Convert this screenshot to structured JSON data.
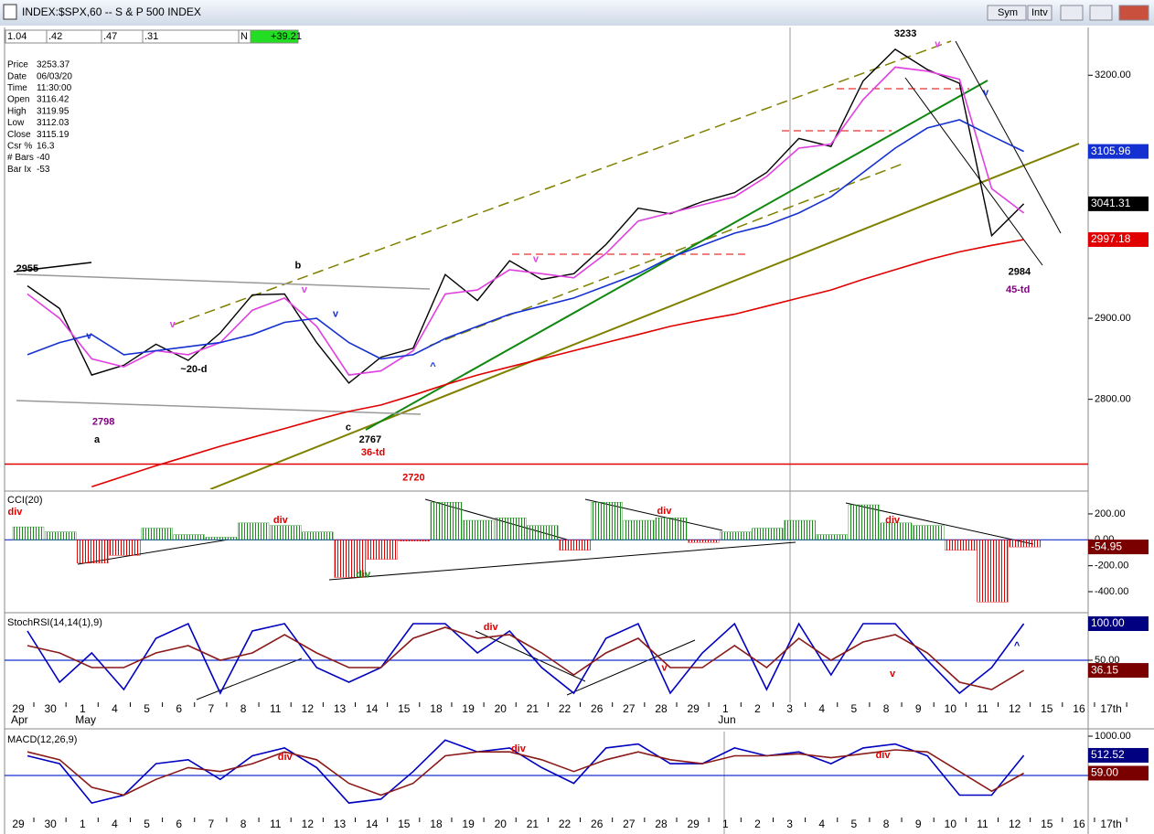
{
  "window": {
    "title": "INDEX:$SPX,60 -- S & P 500 INDEX",
    "buttons": [
      "Sym",
      "Intv"
    ]
  },
  "toolbar": [
    "1.04",
    ".42",
    ".47",
    ".31",
    "N",
    "+39.21"
  ],
  "info": [
    [
      "Price",
      "3253.37"
    ],
    [
      "Date",
      "06/03/20"
    ],
    [
      "Time",
      "11:30:00"
    ],
    [
      "Open",
      "3116.42"
    ],
    [
      "High",
      "3119.95"
    ],
    [
      "Low",
      "3112.03"
    ],
    [
      "Close",
      "3115.19"
    ],
    [
      "Csr %",
      "16.3"
    ],
    [
      "# Bars",
      "-40"
    ],
    [
      "Bar Ix",
      "-53"
    ]
  ],
  "chart_data": [
    {
      "type": "line",
      "categories": [
        "29",
        "30",
        "1",
        "4",
        "5",
        "6",
        "7",
        "8",
        "11",
        "12",
        "13",
        "14",
        "15",
        "18",
        "19",
        "20",
        "21",
        "22",
        "26",
        "27",
        "28",
        "29",
        "1",
        "2",
        "3",
        "4",
        "5",
        "8",
        "9",
        "10",
        "11",
        "12",
        "15",
        "16",
        "17th"
      ],
      "months": [
        {
          "label": "Apr",
          "at": 0
        },
        {
          "label": "May",
          "at": 2
        },
        {
          "label": "Jun",
          "at": 22
        }
      ],
      "ylim": [
        2689,
        3259
      ],
      "yticks": [
        {
          "value": 2800,
          "label": "2800.00"
        },
        {
          "value": 2900,
          "label": "2900.00"
        },
        {
          "value": 3200,
          "label": "3200.00"
        }
      ],
      "hlines": [
        {
          "value": 2720,
          "color": "#e00000"
        }
      ],
      "series": [
        {
          "color": "#000000",
          "values": [
            2940,
            2912,
            2830,
            2842,
            2868,
            2848,
            2882,
            2929,
            2930,
            2870,
            2820,
            2852,
            2863,
            2954,
            2922,
            2971,
            2948,
            2955,
            2991,
            3036,
            3029,
            3044,
            3055,
            3080,
            3122,
            3112,
            3193,
            3232,
            3207,
            3190,
            3002,
            3041.31,
            null,
            null,
            null
          ],
          "badge_color": "#000000"
        },
        {
          "color": "#e040e0",
          "values": [
            2930,
            2900,
            2850,
            2840,
            2860,
            2855,
            2870,
            2910,
            2925,
            2890,
            2830,
            2835,
            2860,
            2930,
            2935,
            2960,
            2955,
            2950,
            2980,
            3020,
            3030,
            3040,
            3050,
            3075,
            3110,
            3115,
            3170,
            3210,
            3205,
            3195,
            3060,
            3030,
            null,
            null,
            null
          ]
        },
        {
          "color": "#1530d0",
          "values": [
            2855,
            2870,
            2880,
            2855,
            2860,
            2865,
            2870,
            2880,
            2895,
            2900,
            2870,
            2850,
            2855,
            2875,
            2890,
            2905,
            2915,
            2925,
            2940,
            2955,
            2975,
            2990,
            3005,
            3015,
            3030,
            3050,
            3080,
            3110,
            3135,
            3145,
            3125,
            3105.96,
            null,
            null,
            null
          ],
          "badge_color": "#1530d0"
        },
        {
          "color": "#e00000",
          "values": [
            null,
            null,
            2692,
            2705,
            2718,
            2730,
            2742,
            2753,
            2764,
            2775,
            2785,
            2793,
            2805,
            2818,
            2830,
            2840,
            2850,
            2860,
            2870,
            2880,
            2890,
            2898,
            2905,
            2915,
            2925,
            2935,
            2948,
            2960,
            2972,
            2982,
            2990,
            2997.18,
            null,
            null,
            null
          ],
          "badge_color": "#e00000"
        }
      ],
      "annotations": [
        {
          "text": "2955",
          "x": 0.28,
          "y": 2961,
          "color": "#000000"
        },
        {
          "text": "b",
          "x": 8.7,
          "y": 2965,
          "color": "#000000"
        },
        {
          "text": "v",
          "x": 2.2,
          "y": 2878,
          "color": "#1530d0"
        },
        {
          "text": "v",
          "x": 4.8,
          "y": 2892,
          "color": "#e040e0"
        },
        {
          "text": "2798",
          "x": 2.65,
          "y": 2772,
          "color": "#800080"
        },
        {
          "text": "a",
          "x": 2.45,
          "y": 2750,
          "color": "#000000"
        },
        {
          "text": "~20-d",
          "x": 5.46,
          "y": 2837,
          "color": "#000000"
        },
        {
          "text": "c",
          "x": 10.27,
          "y": 2765,
          "color": "#000000"
        },
        {
          "text": "2767",
          "x": 10.95,
          "y": 2750,
          "color": "#000000"
        },
        {
          "text": "36-td",
          "x": 11.04,
          "y": 2734,
          "color": "#e00000"
        },
        {
          "text": "2720",
          "x": 12.3,
          "y": 2703,
          "color": "#e00000"
        },
        {
          "text": "^",
          "x": 12.9,
          "y": 2840,
          "color": "#1530d0"
        },
        {
          "text": "v",
          "x": 8.9,
          "y": 2935,
          "color": "#e040e0"
        },
        {
          "text": "v",
          "x": 9.87,
          "y": 2905,
          "color": "#1530d0"
        },
        {
          "text": "v",
          "x": 16.1,
          "y": 2973,
          "color": "#e040e0"
        },
        {
          "text": "3233",
          "x": 27.6,
          "y": 3251,
          "color": "#000000"
        },
        {
          "text": "v",
          "x": 28.6,
          "y": 3238,
          "color": "#e040e0"
        },
        {
          "text": "v",
          "x": 30.1,
          "y": 3178,
          "color": "#1530d0"
        },
        {
          "text": "2984",
          "x": 31.15,
          "y": 2957,
          "color": "#000000"
        },
        {
          "text": "45-td",
          "x": 31.1,
          "y": 2935,
          "color": "#800080"
        }
      ]
    },
    {
      "type": "bar",
      "title": "CCI(20)",
      "ylim": [
        -527,
        369
      ],
      "baseline": 0,
      "yticks": [
        {
          "value": 200,
          "label": "200.00"
        },
        {
          "value": 0,
          "label": "0.00"
        },
        {
          "value": -200,
          "label": "-200.00"
        },
        {
          "value": -400,
          "label": "-400.00"
        }
      ],
      "series": [
        {
          "color": "#7a0000",
          "pos_color": "#1a8a1a",
          "neg_color": "#e00000",
          "values": [
            100,
            60,
            -180,
            -120,
            90,
            40,
            20,
            130,
            110,
            60,
            -290,
            -150,
            -10,
            290,
            150,
            170,
            110,
            -80,
            290,
            150,
            170,
            -20,
            60,
            90,
            150,
            40,
            270,
            130,
            110,
            -80,
            -480,
            -54.95,
            null,
            null,
            null
          ],
          "badge_color": "#7a0000"
        }
      ],
      "annotations": [
        {
          "text": "div",
          "x": -0.1,
          "y": 214,
          "color": "#e00000"
        },
        {
          "text": "div",
          "x": 8.16,
          "y": 150,
          "color": "#e00000"
        },
        {
          "text": "div",
          "x": 10.73,
          "y": -270,
          "color": "#1a8a1a"
        },
        {
          "text": "div",
          "x": 20.1,
          "y": 220,
          "color": "#e00000"
        },
        {
          "text": "div",
          "x": 27.2,
          "y": 150,
          "color": "#e00000"
        }
      ]
    },
    {
      "type": "line",
      "title": "StochRSI(14,14(1),9)",
      "ylim": [
        -7.5,
        112.5
      ],
      "baseline": 50,
      "yticks": [
        {
          "value": 50,
          "label": "50.00"
        },
        {
          "value": 100,
          "label": "100.00"
        }
      ],
      "series": [
        {
          "color": "#0000c0",
          "values": [
            90,
            20,
            60,
            10,
            80,
            100,
            5,
            90,
            100,
            40,
            20,
            40,
            100,
            100,
            60,
            90,
            40,
            5,
            80,
            100,
            5,
            60,
            100,
            10,
            100,
            30,
            100,
            100,
            50,
            5,
            40,
            100,
            null,
            null,
            null
          ],
          "value_labels": [
            null,
            null,
            null,
            null,
            null,
            null,
            null,
            null,
            null,
            null,
            null,
            null,
            null,
            null,
            null,
            null,
            null,
            null,
            null,
            null,
            null,
            null,
            null,
            null,
            null,
            null,
            null,
            null,
            null,
            null,
            null,
            "100.00",
            null,
            null,
            null
          ],
          "badge_color": "#000080"
        },
        {
          "color": "#8b1a1a",
          "values": [
            70,
            60,
            40,
            40,
            60,
            70,
            50,
            60,
            85,
            60,
            40,
            40,
            80,
            95,
            80,
            85,
            60,
            30,
            60,
            80,
            40,
            40,
            70,
            40,
            80,
            50,
            75,
            85,
            60,
            20,
            10,
            36.15,
            null,
            null,
            null
          ],
          "badge_color": "#7a0000"
        }
      ],
      "annotations": [
        {
          "text": "div",
          "x": 14.7,
          "y": 95,
          "color": "#e00000"
        },
        {
          "text": "v",
          "x": 20.1,
          "y": 39,
          "color": "#e00000"
        },
        {
          "text": "v",
          "x": 27.2,
          "y": 31,
          "color": "#e00000"
        },
        {
          "text": "^",
          "x": 31.07,
          "y": 69,
          "color": "#0000c0"
        }
      ]
    },
    {
      "type": "line",
      "title": "MACD(12,26,9)",
      "ylim": [
        -1488,
        1116
      ],
      "baseline": 0,
      "yticks": [
        {
          "value": 1000,
          "label": "1000.00"
        }
      ],
      "categories": [
        "29",
        "30",
        "1",
        "4",
        "5",
        "6",
        "7",
        "8",
        "11",
        "12",
        "13",
        "14",
        "15",
        "18",
        "19",
        "20",
        "21",
        "22",
        "26",
        "27",
        "28",
        "29",
        "1",
        "2",
        "3",
        "4",
        "5",
        "8",
        "9",
        "10",
        "11",
        "12",
        "15",
        "16",
        "17th"
      ],
      "series": [
        {
          "color": "#0000c0",
          "values": [
            500,
            300,
            -700,
            -500,
            300,
            400,
            -100,
            500,
            700,
            200,
            -700,
            -600,
            100,
            900,
            600,
            700,
            200,
            -200,
            700,
            800,
            300,
            300,
            700,
            500,
            600,
            300,
            700,
            800,
            500,
            -500,
            -500,
            512.52,
            null,
            null,
            null
          ],
          "badge_color": "#000080"
        },
        {
          "color": "#8b1a1a",
          "values": [
            600,
            400,
            -300,
            -500,
            -100,
            200,
            100,
            300,
            600,
            400,
            -200,
            -500,
            -200,
            500,
            600,
            600,
            400,
            100,
            400,
            600,
            400,
            300,
            500,
            500,
            550,
            450,
            550,
            650,
            600,
            100,
            -400,
            59,
            null,
            null,
            null
          ],
          "value_labels": [
            null,
            null,
            null,
            null,
            null,
            null,
            null,
            null,
            null,
            null,
            null,
            null,
            null,
            null,
            null,
            null,
            null,
            null,
            null,
            null,
            null,
            null,
            null,
            null,
            null,
            null,
            null,
            null,
            null,
            null,
            null,
            "59.00",
            null,
            null,
            null
          ],
          "badge_color": "#7a0000"
        }
      ],
      "annotations": [
        {
          "text": "div",
          "x": 8.3,
          "y": 465,
          "color": "#e00000"
        },
        {
          "text": "div",
          "x": 15.56,
          "y": 675,
          "color": "#e00000"
        },
        {
          "text": "div",
          "x": 26.9,
          "y": 510,
          "color": "#e00000"
        }
      ]
    }
  ]
}
